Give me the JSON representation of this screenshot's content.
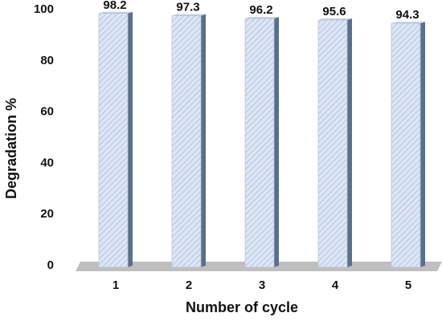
{
  "chart_data": {
    "type": "bar",
    "categories": [
      "1",
      "2",
      "3",
      "4",
      "5"
    ],
    "values": [
      98.2,
      97.3,
      96.2,
      95.6,
      94.3
    ],
    "data_labels": [
      "98.2",
      "97.3",
      "96.2",
      "95.6",
      "94.3"
    ],
    "xlabel": "Number of cycle",
    "ylabel": "Degradation %",
    "ylim": [
      0,
      100
    ],
    "yticks": [
      "0",
      "20",
      "40",
      "60",
      "80",
      "100"
    ],
    "grid": false,
    "legend": "none",
    "style": "3d-hatched",
    "colors": {
      "bar_front": "#dde6f4",
      "bar_hatch": "#9fb4d6",
      "bar_side": "#5a6f88",
      "bar_top": "#c3cfe0",
      "floor": "#bfbfbf",
      "text": "#111111"
    }
  }
}
